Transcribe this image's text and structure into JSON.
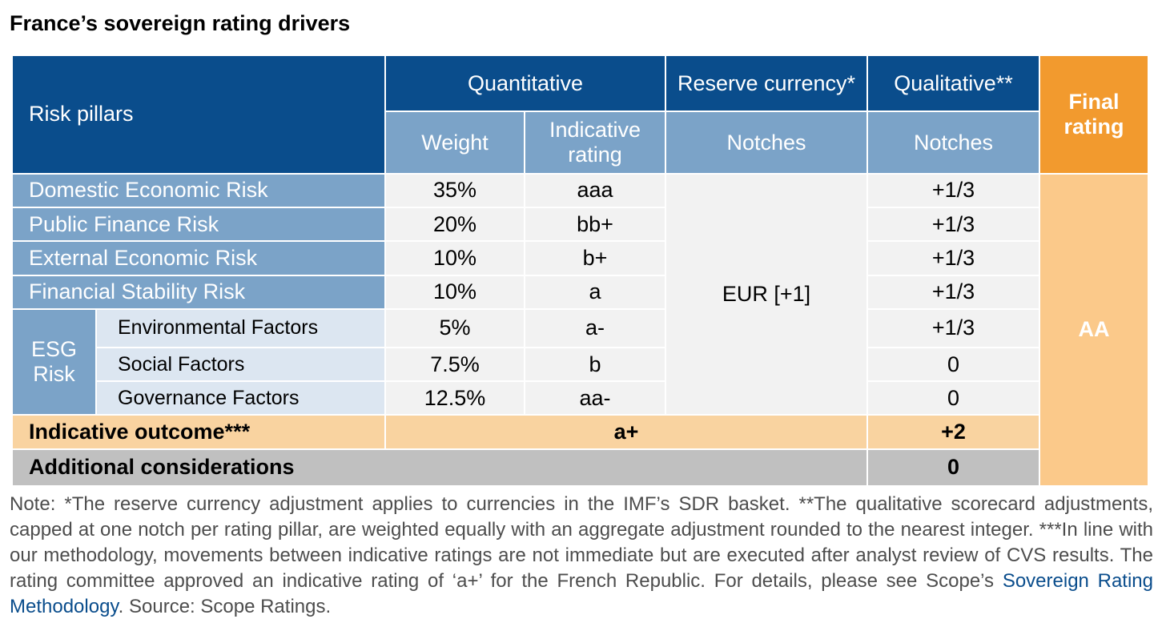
{
  "title": "France’s sovereign rating drivers",
  "header": {
    "risk_pillars": "Risk pillars",
    "quantitative": "Quantitative",
    "reserve_currency": "Reserve currency*",
    "qualitative": "Qualitative**",
    "final_rating": "Final rating",
    "weight": "Weight",
    "indicative_rating": "Indicative rating",
    "notches_reserve": "Notches",
    "notches_qualitative": "Notches"
  },
  "rows": [
    {
      "pillar": "Domestic Economic Risk",
      "weight": "35%",
      "rating": "aaa",
      "qual": "+1/3"
    },
    {
      "pillar": "Public Finance Risk",
      "weight": "20%",
      "rating": "bb+",
      "qual": "+1/3"
    },
    {
      "pillar": "External Economic Risk",
      "weight": "10%",
      "rating": "b+",
      "qual": "+1/3"
    },
    {
      "pillar": "Financial Stability Risk",
      "weight": "10%",
      "rating": "a",
      "qual": "+1/3"
    }
  ],
  "esg": {
    "label": "ESG Risk",
    "rows": [
      {
        "factor": "Environmental Factors",
        "weight": "5%",
        "rating": "a-",
        "qual": "+1/3"
      },
      {
        "factor": "Social Factors",
        "weight": "7.5%",
        "rating": "b",
        "qual": "0"
      },
      {
        "factor": "Governance Factors",
        "weight": "12.5%",
        "rating": "aa-",
        "qual": "0"
      }
    ]
  },
  "reserve_value": "EUR [+1]",
  "final_value": "AA",
  "indicative_outcome": {
    "label": "Indicative outcome***",
    "value": "a+",
    "qual": "+2"
  },
  "additional": {
    "label": "Additional considerations",
    "qual": "0"
  },
  "note": {
    "before_link": "Note: *The reserve currency adjustment applies to currencies in the IMF’s SDR basket. **The qualitative scorecard adjustments, capped at one notch per rating pillar, are weighted equally with an aggregate adjustment rounded to the nearest integer. ***In line with our methodology, movements between indicative ratings are not immediate but are executed after analyst review of CVS results. The rating committee approved an indicative rating of ‘a+’ for the French Republic. For details, please see Scope’s ",
    "link": "Sovereign Rating Methodology",
    "after_link": ". Source: Scope Ratings."
  },
  "colors": {
    "header_dark": "#0a4d8c",
    "header_light": "#7ba3c8",
    "final_header": "#f29a2e",
    "final_body": "#fbc98a",
    "outcome_row": "#f9d3a0",
    "additional_row": "#c0c0c0",
    "esg_sub": "#dce6f1",
    "data_cell": "#f2f2f2"
  }
}
